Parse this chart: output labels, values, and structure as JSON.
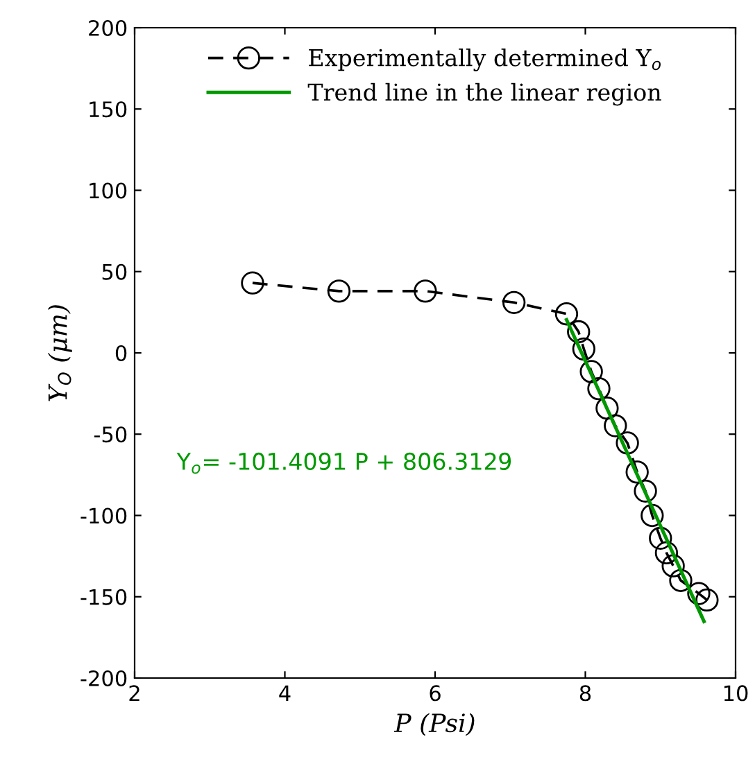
{
  "chart_data": {
    "type": "line",
    "xlabel": "P (Psi)",
    "ylabel": "Y$_{O}$ (μm)",
    "xlim": [
      2,
      10
    ],
    "ylim": [
      -200,
      200
    ],
    "xticks": [
      2,
      4,
      6,
      8,
      10
    ],
    "yticks": [
      -200,
      -150,
      -100,
      -50,
      0,
      50,
      100,
      150,
      200
    ],
    "grid": false,
    "legend": "top",
    "annotations": [
      "Y$_{o}$= -101.4091 P + 806.3129"
    ],
    "series": [
      {
        "name": "Experimentally determined Y$_{o}$",
        "color": "#000000",
        "marker": "circle",
        "line_style": "dashed",
        "x": [
          3.57,
          4.72,
          5.87,
          7.05,
          7.75,
          7.91,
          7.98,
          8.08,
          8.18,
          8.29,
          8.4,
          8.56,
          8.69,
          8.8,
          8.89,
          9.0,
          9.08,
          9.17,
          9.27,
          9.51,
          9.62
        ],
        "values": [
          43,
          38,
          38,
          31,
          24,
          13,
          2.4,
          -11.5,
          -22,
          -34,
          -44.8,
          -55.4,
          -73.3,
          -85,
          -100,
          -114,
          -123,
          -131,
          -140,
          -148,
          -152
        ]
      },
      {
        "name": "Trend line in the linear region",
        "color": "#009900",
        "marker": "none",
        "line_style": "solid",
        "x": [
          7.75,
          9.58
        ],
        "values": [
          20.38,
          -165.17
        ]
      }
    ]
  }
}
